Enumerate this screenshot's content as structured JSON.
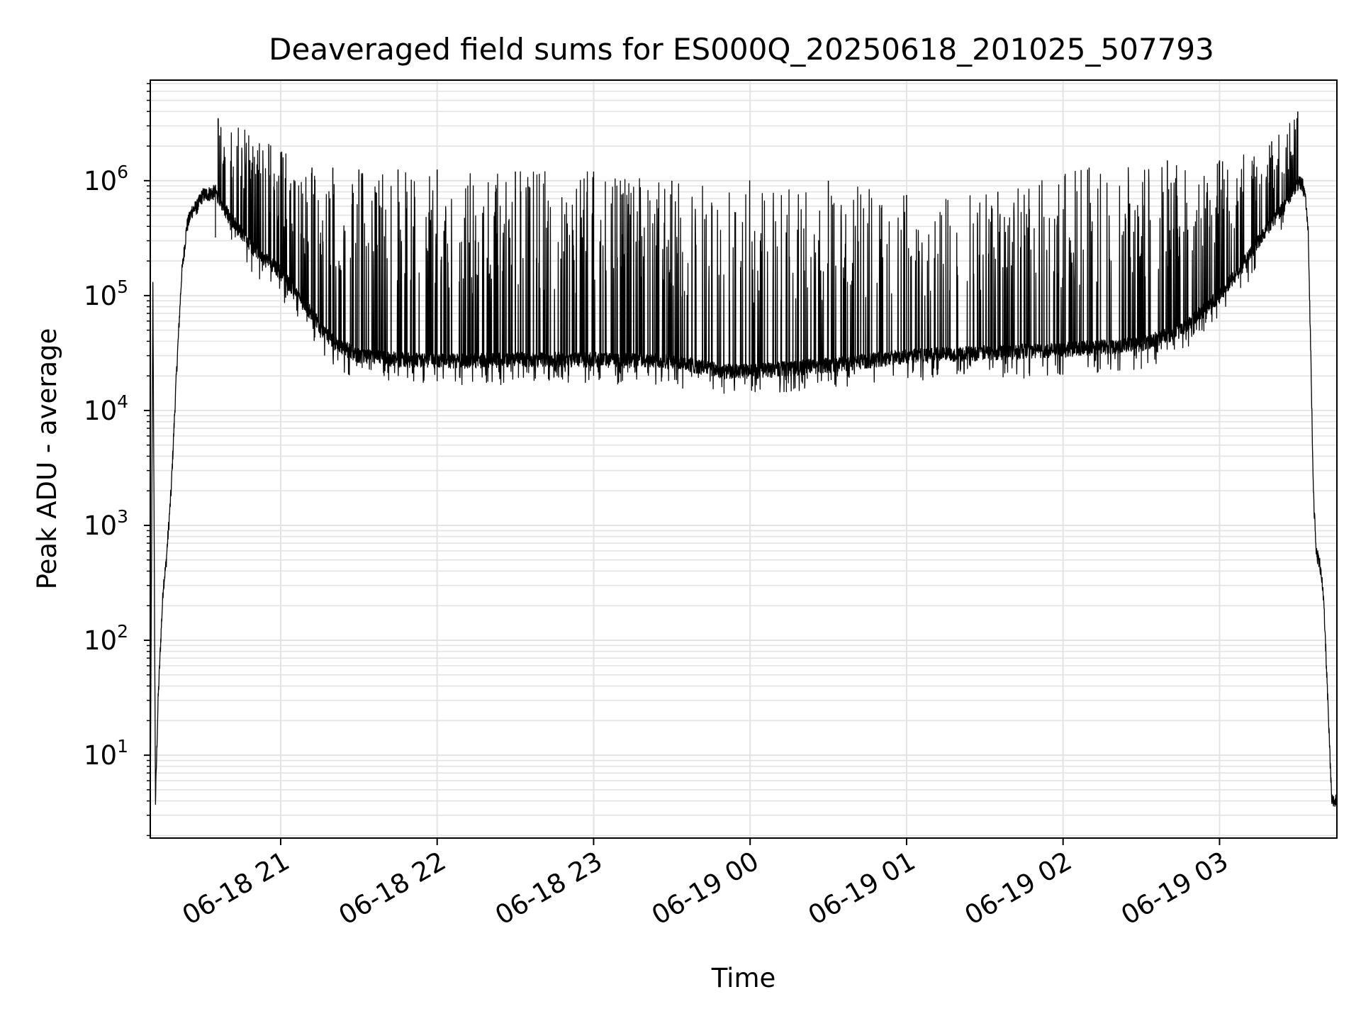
{
  "chart_data": {
    "type": "line",
    "title": "Deaveraged field sums for ES000Q_20250618_201025_507793",
    "xlabel": "Time",
    "ylabel": "Peak ADU - average",
    "y_scale": "log",
    "ylim": [
      1.9,
      7500000
    ],
    "xlim": [
      "2025-06-18 20:10",
      "2025-06-19 03:45"
    ],
    "grid": true,
    "x_ticks": [
      {
        "t": "2025-06-18 21:00",
        "label": "06-18 21"
      },
      {
        "t": "2025-06-18 22:00",
        "label": "06-18 22"
      },
      {
        "t": "2025-06-18 23:00",
        "label": "06-18 23"
      },
      {
        "t": "2025-06-19 00:00",
        "label": "06-19 00"
      },
      {
        "t": "2025-06-19 01:00",
        "label": "06-19 01"
      },
      {
        "t": "2025-06-19 02:00",
        "label": "06-19 02"
      },
      {
        "t": "2025-06-19 03:00",
        "label": "06-19 03"
      }
    ],
    "y_ticks": [
      {
        "value": 10,
        "base": "10",
        "exp": "1"
      },
      {
        "value": 100,
        "base": "10",
        "exp": "2"
      },
      {
        "value": 1000,
        "base": "10",
        "exp": "3"
      },
      {
        "value": 10000,
        "base": "10",
        "exp": "4"
      },
      {
        "value": 100000,
        "base": "10",
        "exp": "5"
      },
      {
        "value": 1000000,
        "base": "10",
        "exp": "6"
      }
    ],
    "series": [
      {
        "color": "#000000",
        "envelope": {
          "x": [
            "2025-06-18 20:10",
            "2025-06-18 20:11",
            "2025-06-18 20:12",
            "2025-06-18 20:13",
            "2025-06-18 20:14",
            "2025-06-18 20:15",
            "2025-06-18 20:16",
            "2025-06-18 20:18",
            "2025-06-18 20:20",
            "2025-06-18 20:22",
            "2025-06-18 20:24",
            "2025-06-18 20:26",
            "2025-06-18 20:28",
            "2025-06-18 20:30",
            "2025-06-18 20:35",
            "2025-06-18 20:40",
            "2025-06-18 20:45",
            "2025-06-18 20:50",
            "2025-06-18 20:55",
            "2025-06-18 21:00",
            "2025-06-18 21:05",
            "2025-06-18 21:10",
            "2025-06-18 21:15",
            "2025-06-18 21:20",
            "2025-06-18 21:30",
            "2025-06-18 21:45",
            "2025-06-18 22:00",
            "2025-06-18 22:30",
            "2025-06-18 23:00",
            "2025-06-18 23:30",
            "2025-06-18 23:50",
            "2025-06-19 00:00",
            "2025-06-19 00:30",
            "2025-06-19 01:00",
            "2025-06-19 01:30",
            "2025-06-19 01:45",
            "2025-06-19 02:00",
            "2025-06-19 02:15",
            "2025-06-19 02:30",
            "2025-06-19 02:45",
            "2025-06-19 03:00",
            "2025-06-19 03:10",
            "2025-06-19 03:15",
            "2025-06-19 03:20",
            "2025-06-19 03:25",
            "2025-06-19 03:28",
            "2025-06-19 03:30",
            "2025-06-19 03:31",
            "2025-06-19 03:32",
            "2025-06-19 03:33",
            "2025-06-19 03:34",
            "2025-06-19 03:35",
            "2025-06-19 03:36",
            "2025-06-19 03:37",
            "2025-06-19 03:38",
            "2025-06-19 03:39",
            "2025-06-19 03:40",
            "2025-06-19 03:41",
            "2025-06-19 03:42",
            "2025-06-19 03:43",
            "2025-06-19 03:44",
            "2025-06-19 03:45"
          ],
          "y": [
            3,
            120000,
            4,
            30,
            100,
            300,
            450,
            2000,
            20000,
            150000,
            400000,
            550000,
            600000,
            750000,
            800000,
            500000,
            350000,
            250000,
            200000,
            160000,
            110000,
            80000,
            55000,
            40000,
            30000,
            28000,
            27000,
            28000,
            28000,
            27000,
            22000,
            22000,
            25000,
            30000,
            32000,
            33000,
            34000,
            36000,
            38000,
            50000,
            100000,
            200000,
            300000,
            450000,
            600000,
            800000,
            950000,
            950000,
            900000,
            700000,
            350000,
            30000,
            2000,
            600,
            500,
            400,
            200,
            60,
            15,
            4,
            4,
            4
          ]
        },
        "spikes": [
          {
            "t": "2025-06-18 20:36",
            "y": 3500000
          },
          {
            "t": "2025-06-18 21:12",
            "y": 1300000
          },
          {
            "t": "2025-06-18 21:20",
            "y": 1300000
          },
          {
            "t": "2025-06-18 21:30",
            "y": 1250000
          },
          {
            "t": "2025-06-18 21:45",
            "y": 1250000
          },
          {
            "t": "2025-06-18 22:00",
            "y": 1250000
          },
          {
            "t": "2025-06-18 22:30",
            "y": 1200000
          },
          {
            "t": "2025-06-18 23:00",
            "y": 1200000
          },
          {
            "t": "2025-06-18 23:30",
            "y": 1000000
          },
          {
            "t": "2025-06-19 00:30",
            "y": 1000000
          },
          {
            "t": "2025-06-19 01:00",
            "y": 750000
          },
          {
            "t": "2025-06-19 01:35",
            "y": 800000
          },
          {
            "t": "2025-06-19 02:10",
            "y": 1300000
          },
          {
            "t": "2025-06-19 02:40",
            "y": 1500000
          },
          {
            "t": "2025-06-19 03:00",
            "y": 1500000
          },
          {
            "t": "2025-06-19 03:20",
            "y": 2200000
          },
          {
            "t": "2025-06-19 03:30",
            "y": 4000000
          }
        ],
        "lows": [
          {
            "t": "2025-06-18 20:35",
            "y": 320000
          },
          {
            "t": "2025-06-18 21:40",
            "y": 22000
          },
          {
            "t": "2025-06-18 22:00",
            "y": 18000
          },
          {
            "t": "2025-06-18 23:00",
            "y": 20000
          },
          {
            "t": "2025-06-18 23:50",
            "y": 14000
          },
          {
            "t": "2025-06-19 00:30",
            "y": 18000
          },
          {
            "t": "2025-06-19 01:45",
            "y": 19000
          },
          {
            "t": "2025-06-19 02:30",
            "y": 23000
          }
        ]
      }
    ]
  }
}
